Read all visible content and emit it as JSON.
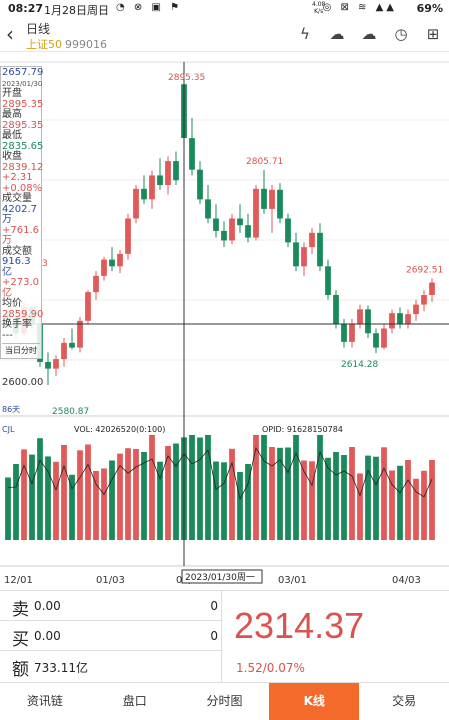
{
  "status_bar": {
    "time": "08:27",
    "date": "1月28日周日",
    "net_speed": "4.08",
    "net_unit": "K/s",
    "battery": "69%"
  },
  "header": {
    "back_icon": "back-arrow-icon",
    "title": "日线",
    "index_name": "上证50",
    "index_code": "999016"
  },
  "info_panel": {
    "date_value": "2657.79",
    "date": "2023/01/30",
    "open_label": "开盘",
    "open": "2895.35",
    "high_label": "最高",
    "high": "2895.35",
    "low_label": "最低",
    "low": "2835.65",
    "close_label": "收盘",
    "close": "2839.12",
    "change": "+2.31",
    "change_pct": "+0.08%",
    "volume_label": "成交量",
    "volume": "4202.7万",
    "volume_change": "+761.6万",
    "amount_label": "成交额",
    "amount": "916.3亿",
    "amount_change": "+273.0亿",
    "avg_label": "均价",
    "avg": "2859.90",
    "turnover_label": "换手率",
    "turnover": "---",
    "current_day": "当日分时"
  },
  "chart_labels": {
    "y_mid": "2600.00",
    "days": "86天",
    "high_mark": "2895.35",
    "peak2_mark": "2805.71",
    "recent_mark": "2692.51",
    "low_mark": "2614.28",
    "min_mark": "2580.87",
    "edge_mark": "3",
    "cjl": "CJL",
    "vol_text": "VOL: 42026520(0:100)",
    "opid_text": "OPID: 91628150784",
    "x_labels": [
      "12/01",
      "01/03",
      "02/01",
      "03/01",
      "04/03"
    ],
    "crosshair_date": "2023/01/30周一"
  },
  "quote": {
    "sell_label": "卖",
    "sell_value": "0.00",
    "sell_count": "0",
    "buy_label": "买",
    "buy_value": "0.00",
    "buy_count": "0",
    "amount_label": "额",
    "amount_value": "733.11亿",
    "price": "2314.37",
    "change": "1.52/0.07%"
  },
  "nav": {
    "tabs": [
      "资讯链",
      "盘口",
      "分时图",
      "K线",
      "交易"
    ]
  },
  "chart_data": {
    "type": "candlestick",
    "title": "",
    "x_labels": [
      "12/01",
      "01/03",
      "02/01",
      "03/01",
      "04/03"
    ],
    "y_min_visible": 2580.87,
    "y_max_visible": 2895.35,
    "candles": [
      [
        2655,
        2665,
        2640,
        2650
      ],
      [
        2650,
        2660,
        2630,
        2635
      ],
      [
        2635,
        2668,
        2632,
        2662
      ],
      [
        2662,
        2664,
        2640,
        2645
      ],
      [
        2645,
        2658,
        2600,
        2605
      ],
      [
        2605,
        2615,
        2580.87,
        2598
      ],
      [
        2598,
        2612,
        2590,
        2608
      ],
      [
        2608,
        2630,
        2600,
        2625
      ],
      [
        2625,
        2640,
        2618,
        2620
      ],
      [
        2620,
        2652,
        2615,
        2648
      ],
      [
        2648,
        2680,
        2645,
        2678
      ],
      [
        2678,
        2700,
        2670,
        2695
      ],
      [
        2695,
        2715,
        2690,
        2712
      ],
      [
        2712,
        2725,
        2700,
        2705
      ],
      [
        2705,
        2722,
        2698,
        2718
      ],
      [
        2718,
        2760,
        2712,
        2755
      ],
      [
        2755,
        2790,
        2750,
        2786
      ],
      [
        2786,
        2800,
        2770,
        2775
      ],
      [
        2775,
        2805,
        2765,
        2800
      ],
      [
        2800,
        2818,
        2785,
        2790
      ],
      [
        2790,
        2820,
        2780,
        2815
      ],
      [
        2815,
        2825,
        2790,
        2795
      ],
      [
        2895.35,
        2895.35,
        2835.65,
        2839.12
      ],
      [
        2839,
        2860,
        2800,
        2806
      ],
      [
        2806,
        2815,
        2770,
        2775
      ],
      [
        2775,
        2790,
        2750,
        2755
      ],
      [
        2755,
        2770,
        2735,
        2742
      ],
      [
        2742,
        2752,
        2725,
        2732
      ],
      [
        2732,
        2760,
        2728,
        2755
      ],
      [
        2755,
        2770,
        2740,
        2748
      ],
      [
        2748,
        2760,
        2730,
        2735
      ],
      [
        2735,
        2790,
        2732,
        2786
      ],
      [
        2786,
        2805.71,
        2760,
        2765
      ],
      [
        2765,
        2790,
        2740,
        2785
      ],
      [
        2785,
        2792,
        2750,
        2755
      ],
      [
        2755,
        2760,
        2725,
        2730
      ],
      [
        2730,
        2740,
        2700,
        2705
      ],
      [
        2705,
        2730,
        2695,
        2725
      ],
      [
        2725,
        2745,
        2718,
        2740
      ],
      [
        2740,
        2750,
        2700,
        2705
      ],
      [
        2705,
        2712,
        2670,
        2675
      ],
      [
        2675,
        2680,
        2640,
        2645
      ],
      [
        2645,
        2650,
        2620,
        2626
      ],
      [
        2626,
        2650,
        2620,
        2645
      ],
      [
        2645,
        2665,
        2640,
        2660
      ],
      [
        2660,
        2664,
        2630,
        2635
      ],
      [
        2635,
        2640,
        2614.28,
        2620
      ],
      [
        2620,
        2645,
        2618,
        2640
      ],
      [
        2640,
        2660,
        2635,
        2656
      ],
      [
        2656,
        2662,
        2640,
        2645
      ],
      [
        2645,
        2660,
        2640,
        2655
      ],
      [
        2655,
        2670,
        2648,
        2665
      ],
      [
        2665,
        2680,
        2658,
        2675
      ],
      [
        2675,
        2692.51,
        2668,
        2688
      ]
    ],
    "volume_series_name": "VOL"
  },
  "colors": {
    "up": "#e05a5a",
    "down": "#1a8a5a",
    "accent_tab": "#f46a2b",
    "price": "#d9534f"
  }
}
